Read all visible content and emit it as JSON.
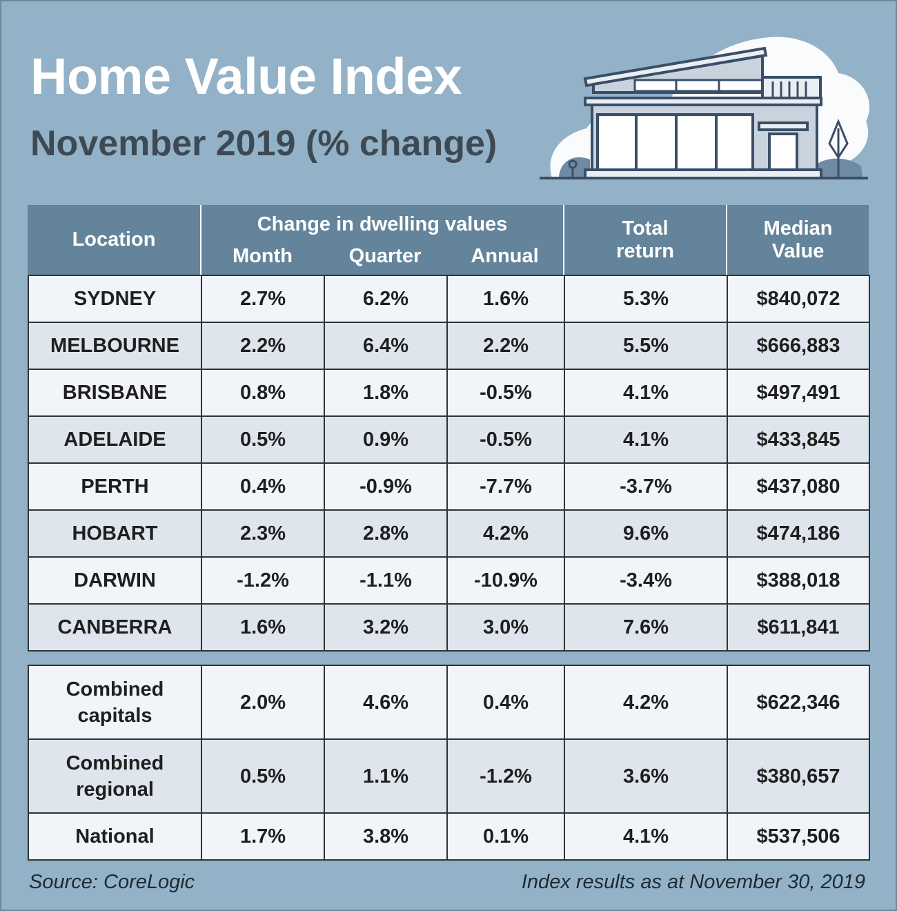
{
  "title": "Home Value Index",
  "subtitle": "November 2019 (% change)",
  "header": {
    "location": "Location",
    "group": "Change in dwelling values",
    "month": "Month",
    "quarter": "Quarter",
    "annual": "Annual",
    "total_return_line1": "Total",
    "total_return_line2": "return",
    "median_line1": "Median",
    "median_line2": "Value"
  },
  "rows": [
    {
      "location": "SYDNEY",
      "month": "2.7%",
      "quarter": "6.2%",
      "annual": "1.6%",
      "total": "5.3%",
      "median": "$840,072"
    },
    {
      "location": "MELBOURNE",
      "month": "2.2%",
      "quarter": "6.4%",
      "annual": "2.2%",
      "total": "5.5%",
      "median": "$666,883"
    },
    {
      "location": "BRISBANE",
      "month": "0.8%",
      "quarter": "1.8%",
      "annual": "-0.5%",
      "total": "4.1%",
      "median": "$497,491"
    },
    {
      "location": "ADELAIDE",
      "month": "0.5%",
      "quarter": "0.9%",
      "annual": "-0.5%",
      "total": "4.1%",
      "median": "$433,845"
    },
    {
      "location": "PERTH",
      "month": "0.4%",
      "quarter": "-0.9%",
      "annual": "-7.7%",
      "total": "-3.7%",
      "median": "$437,080"
    },
    {
      "location": "HOBART",
      "month": "2.3%",
      "quarter": "2.8%",
      "annual": "4.2%",
      "total": "9.6%",
      "median": "$474,186"
    },
    {
      "location": "DARWIN",
      "month": "-1.2%",
      "quarter": "-1.1%",
      "annual": "-10.9%",
      "total": "-3.4%",
      "median": "$388,018"
    },
    {
      "location": "CANBERRA",
      "month": "1.6%",
      "quarter": "3.2%",
      "annual": "3.0%",
      "total": "7.6%",
      "median": "$611,841"
    }
  ],
  "summary": [
    {
      "location_line1": "Combined",
      "location_line2": "capitals",
      "month": "2.0%",
      "quarter": "4.6%",
      "annual": "0.4%",
      "total": "4.2%",
      "median": "$622,346"
    },
    {
      "location_line1": "Combined",
      "location_line2": "regional",
      "month": "0.5%",
      "quarter": "1.1%",
      "annual": "-1.2%",
      "total": "3.6%",
      "median": "$380,657"
    },
    {
      "location_line1": "National",
      "location_line2": "",
      "month": "1.7%",
      "quarter": "3.8%",
      "annual": "0.1%",
      "total": "4.1%",
      "median": "$537,506"
    }
  ],
  "footer": {
    "source": "Source: CoreLogic",
    "note": "Index results as at November 30, 2019"
  },
  "colors": {
    "background": "#93b2c7",
    "header_bg": "#63849a",
    "row_light": "#f1f4f8",
    "row_dark": "#dfe5ec",
    "house_line": "#3a4f67"
  },
  "icons": [
    "house-illustration"
  ]
}
